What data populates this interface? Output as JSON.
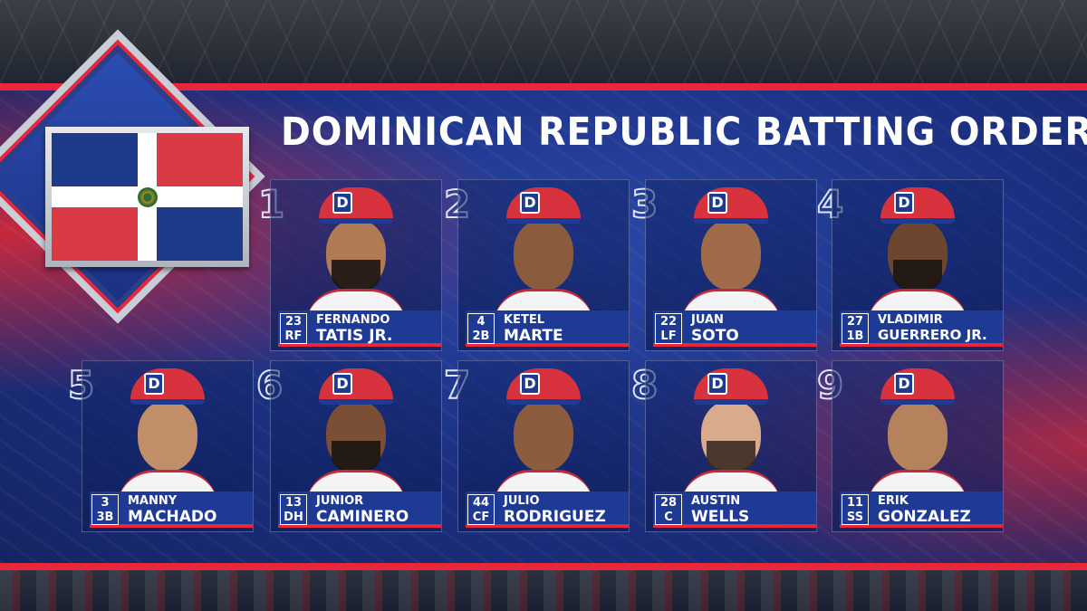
{
  "title": "DOMINICAN REPUBLIC BATTING ORDER",
  "colors": {
    "red": "#e8283a",
    "blue": "#1e3a94",
    "cap_red": "#d9323f"
  },
  "players": [
    {
      "order": "1",
      "number": "23",
      "position": "RF",
      "first": "FERNANDO",
      "last": "TATIS JR."
    },
    {
      "order": "2",
      "number": "4",
      "position": "2B",
      "first": "KETEL",
      "last": "MARTE"
    },
    {
      "order": "3",
      "number": "22",
      "position": "LF",
      "first": "JUAN",
      "last": "SOTO"
    },
    {
      "order": "4",
      "number": "27",
      "position": "1B",
      "first": "VLADIMIR",
      "last": "GUERRERO JR."
    },
    {
      "order": "5",
      "number": "3",
      "position": "3B",
      "first": "MANNY",
      "last": "MACHADO"
    },
    {
      "order": "6",
      "number": "13",
      "position": "DH",
      "first": "JUNIOR",
      "last": "CAMINERO"
    },
    {
      "order": "7",
      "number": "44",
      "position": "CF",
      "first": "JULIO",
      "last": "RODRIGUEZ"
    },
    {
      "order": "8",
      "number": "28",
      "position": "C",
      "first": "AUSTIN",
      "last": "WELLS"
    },
    {
      "order": "9",
      "number": "11",
      "position": "SS",
      "first": "ERIK",
      "last": "GONZALEZ"
    }
  ]
}
